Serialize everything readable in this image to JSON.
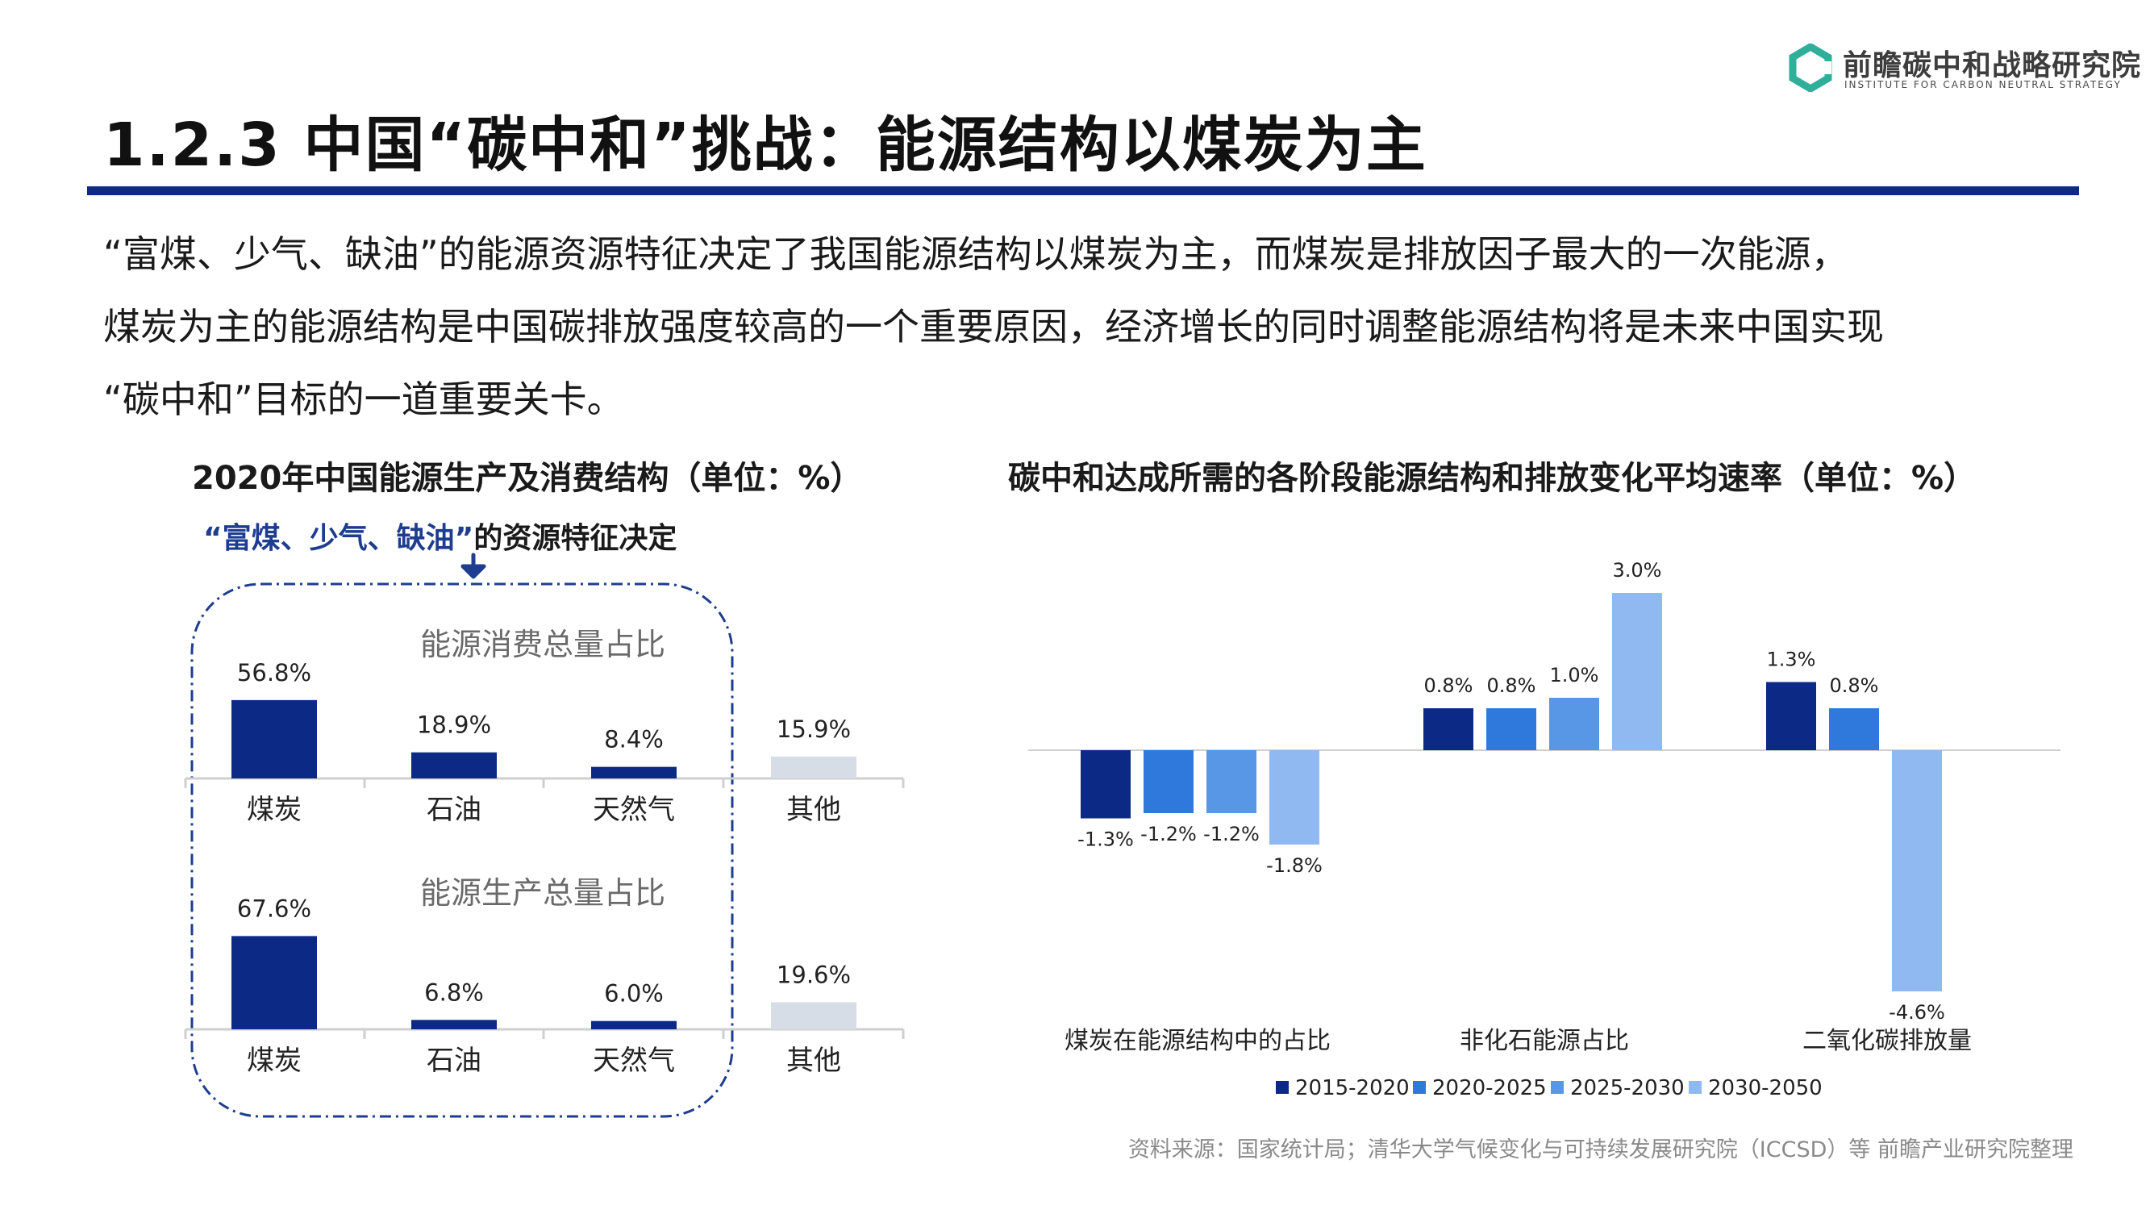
{
  "logo": {
    "name_cn": "前瞻碳中和战略研究院",
    "name_en": "INSTITUTE FOR CARBON NEUTRAL STRATEGY"
  },
  "page_title": "1.2.3 中国“碳中和”挑战：能源结构以煤炭为主",
  "intro_lines": [
    "“富煤、少气、缺油”的能源资源特征决定了我国能源结构以煤炭为主，而煤炭是排放因子最大的一次能源，",
    "煤炭为主的能源结构是中国碳排放强度较高的一个重要原因，经济增长的同时调整能源结构将是未来中国实现",
    "“碳中和”目标的一道重要关卡。"
  ],
  "left_chart": {
    "title": "2020年中国能源生产及消费结构（单位：%）",
    "annotation_highlight": "“富煤、少气、缺油”",
    "annotation_rest": "的资源特征决定"
  },
  "right_chart": {
    "title": "碳中和达成所需的各阶段能源结构和排放变化平均速率（单位：%）"
  },
  "source": "资料来源：国家统计局；清华大学气候变化与可持续发展研究院（ICCSD）等 前瞻产业研究院整理",
  "colors": {
    "dark_blue": "#0c2a85",
    "blue_2": "#2e79db",
    "blue_3": "#5897e6",
    "blue_4": "#8fb9f0",
    "other_gray": "#d7dde6",
    "dashed_border": "#1e3d8f",
    "logo_green": "#2fae9a"
  },
  "chart_data": [
    {
      "type": "bar",
      "title": "能源消费总量占比",
      "categories": [
        "煤炭",
        "石油",
        "天然气",
        "其他"
      ],
      "values": [
        56.8,
        18.9,
        8.4,
        15.9
      ],
      "value_labels": [
        "56.8%",
        "18.9%",
        "8.4%",
        "15.9%"
      ],
      "bar_colors": [
        "#0c2a85",
        "#0c2a85",
        "#0c2a85",
        "#d7dde6"
      ]
    },
    {
      "type": "bar",
      "title": "能源生产总量占比",
      "categories": [
        "煤炭",
        "石油",
        "天然气",
        "其他"
      ],
      "values": [
        67.6,
        6.8,
        6.0,
        19.6
      ],
      "value_labels": [
        "67.6%",
        "6.8%",
        "6.0%",
        "19.6%"
      ],
      "bar_colors": [
        "#0c2a85",
        "#0c2a85",
        "#0c2a85",
        "#d7dde6"
      ]
    },
    {
      "type": "bar",
      "categories": [
        "煤炭在能源结构中的占比",
        "非化石能源占比",
        "二氧化碳排放量"
      ],
      "legend_position": "bottom",
      "series": [
        {
          "name": "2015-2020",
          "color": "#0c2a85",
          "values": [
            -1.3,
            0.8,
            1.3
          ],
          "labels": [
            "-1.3%",
            "0.8%",
            "1.3%"
          ]
        },
        {
          "name": "2020-2025",
          "color": "#2e79db",
          "values": [
            -1.2,
            0.8,
            0.8
          ],
          "labels": [
            "-1.2%",
            "0.8%",
            "0.8%"
          ]
        },
        {
          "name": "2025-2030",
          "color": "#5897e6",
          "values": [
            -1.2,
            1.0,
            null
          ],
          "labels": [
            "-1.2%",
            "1.0%",
            ""
          ]
        },
        {
          "name": "2030-2050",
          "color": "#8fb9f0",
          "values": [
            -1.8,
            3.0,
            -4.6
          ],
          "labels": [
            "-1.8%",
            "3.0%",
            "-4.6%"
          ]
        }
      ]
    }
  ]
}
